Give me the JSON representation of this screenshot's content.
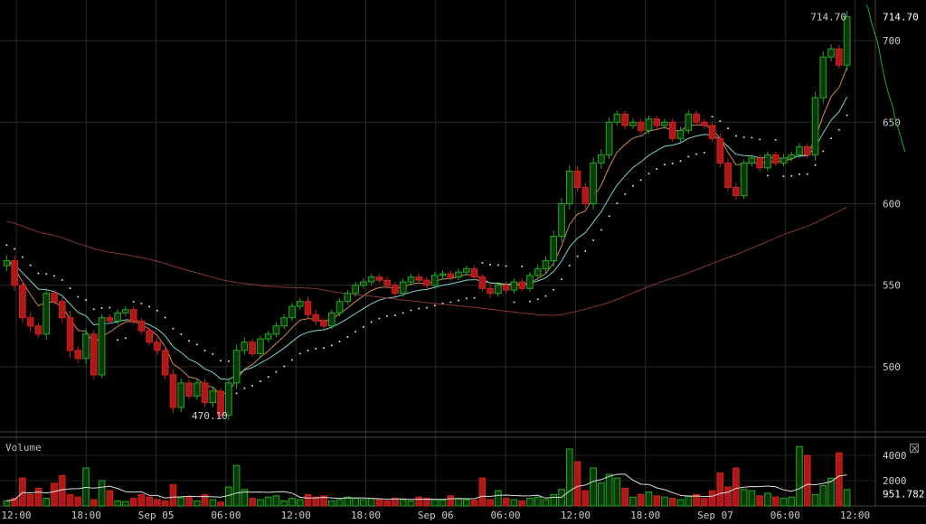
{
  "chart_data": [
    {
      "type": "candlestick",
      "price_axis": {
        "ticks": [
          500,
          550,
          600,
          650,
          700
        ],
        "range": [
          460,
          725
        ]
      },
      "current_price_label": "714.70",
      "max_label": "714.70",
      "min_label": "470.10",
      "x_ticks": [
        "12:00",
        "18:00",
        "Sep 05",
        "06:00",
        "12:00",
        "18:00",
        "Sep 06",
        "06:00",
        "12:00",
        "18:00",
        "Sep 07",
        "06:00",
        "12:00"
      ],
      "grid": true,
      "candles_anchor_close": [
        [
          565,
          10
        ],
        [
          550,
          10
        ],
        [
          530,
          8
        ],
        [
          525,
          10
        ],
        [
          520,
          6
        ],
        [
          545,
          10
        ],
        [
          540,
          6
        ],
        [
          530,
          8
        ],
        [
          510,
          12
        ],
        [
          505,
          8
        ],
        [
          520,
          10
        ],
        [
          495,
          8
        ],
        [
          530,
          6
        ],
        [
          528,
          6
        ],
        [
          533,
          6
        ],
        [
          535,
          6
        ],
        [
          528,
          6
        ],
        [
          522,
          6
        ],
        [
          515,
          6
        ],
        [
          510,
          8
        ],
        [
          495,
          8
        ],
        [
          475,
          10
        ],
        [
          490,
          8
        ],
        [
          482,
          6
        ],
        [
          490,
          6
        ],
        [
          478,
          8
        ],
        [
          485,
          8
        ],
        [
          470.1,
          6
        ],
        [
          490,
          8
        ],
        [
          510,
          10
        ],
        [
          515,
          8
        ],
        [
          508,
          6
        ],
        [
          517,
          6
        ],
        [
          520,
          6
        ],
        [
          525,
          6
        ],
        [
          530,
          6
        ],
        [
          537,
          6
        ],
        [
          540,
          6
        ],
        [
          532,
          8
        ],
        [
          528,
          8
        ],
        [
          525,
          6
        ],
        [
          533,
          6
        ],
        [
          540,
          6
        ],
        [
          545,
          6
        ],
        [
          550,
          6
        ],
        [
          552,
          6
        ],
        [
          555,
          6
        ],
        [
          553,
          6
        ],
        [
          550,
          6
        ],
        [
          545,
          6
        ],
        [
          552,
          6
        ],
        [
          555,
          6
        ],
        [
          553,
          6
        ],
        [
          550,
          6
        ],
        [
          556,
          6
        ],
        [
          557,
          6
        ],
        [
          555,
          6
        ],
        [
          558,
          6
        ],
        [
          560,
          6
        ],
        [
          555,
          6
        ],
        [
          548,
          6
        ],
        [
          545,
          8
        ],
        [
          550,
          6
        ],
        [
          547,
          6
        ],
        [
          552,
          6
        ],
        [
          548,
          6
        ],
        [
          556,
          6
        ],
        [
          560,
          8
        ],
        [
          565,
          8
        ],
        [
          580,
          10
        ],
        [
          600,
          10
        ],
        [
          620,
          10
        ],
        [
          610,
          8
        ],
        [
          600,
          8
        ],
        [
          625,
          10
        ],
        [
          630,
          10
        ],
        [
          650,
          8
        ],
        [
          655,
          6
        ],
        [
          648,
          6
        ],
        [
          650,
          6
        ],
        [
          645,
          6
        ],
        [
          652,
          6
        ],
        [
          648,
          6
        ],
        [
          650,
          6
        ],
        [
          640,
          6
        ],
        [
          645,
          6
        ],
        [
          655,
          6
        ],
        [
          650,
          6
        ],
        [
          648,
          6
        ],
        [
          640,
          6
        ],
        [
          625,
          8
        ],
        [
          610,
          8
        ],
        [
          605,
          8
        ],
        [
          625,
          6
        ],
        [
          628,
          6
        ],
        [
          622,
          6
        ],
        [
          630,
          6
        ],
        [
          625,
          6
        ],
        [
          628,
          6
        ],
        [
          630,
          6
        ],
        [
          635,
          6
        ],
        [
          630,
          6
        ],
        [
          665,
          10
        ],
        [
          690,
          10
        ],
        [
          695,
          8
        ],
        [
          685,
          6
        ],
        [
          714.7,
          10
        ]
      ],
      "moving_averages": [
        "ema-short",
        "ema-long",
        "sma-long",
        "parabolic-sar"
      ]
    },
    {
      "type": "bar",
      "title": "Volume",
      "y_ticks": [
        2000,
        4000
      ],
      "current_volume_label": "951.782",
      "values": [
        400,
        600,
        2200,
        900,
        1400,
        600,
        1800,
        2400,
        900,
        700,
        3000,
        500,
        2000,
        1200,
        400,
        350,
        600,
        900,
        700,
        500,
        400,
        1700,
        650,
        700,
        400,
        900,
        500,
        300,
        1500,
        3200,
        1300,
        600,
        500,
        700,
        800,
        400,
        600,
        500,
        900,
        700,
        800,
        400,
        500,
        700,
        600,
        500,
        600,
        500,
        400,
        600,
        500,
        400,
        700,
        600,
        500,
        450,
        800,
        600,
        500,
        450,
        2200,
        500,
        1200,
        600,
        500,
        400,
        600,
        700,
        500,
        900,
        1300,
        4500,
        3500,
        1200,
        3000,
        1800,
        2500,
        2200,
        1400,
        700,
        900,
        1100,
        800,
        700,
        600,
        500,
        800,
        900,
        600,
        1200,
        2600,
        1500,
        3000,
        1300,
        1200,
        800,
        1000,
        700,
        600,
        700,
        4700,
        4000,
        900,
        1600,
        2200,
        4200,
        1300
      ]
    }
  ]
}
